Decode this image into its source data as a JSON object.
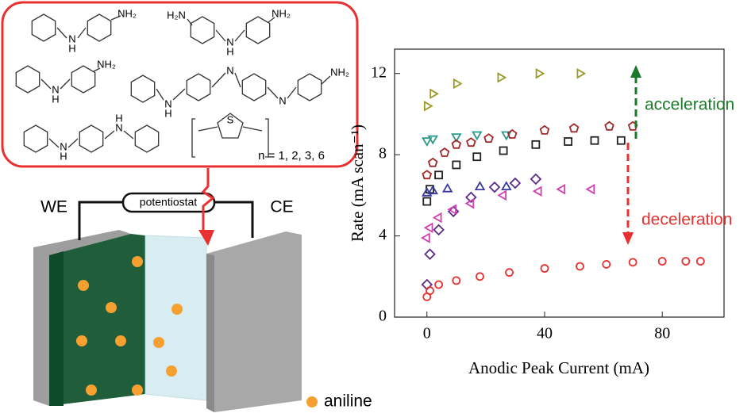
{
  "chart_data": {
    "type": "scatter",
    "xlabel": "Anodic Peak Current (mA)",
    "ylabel": "Rate (mA scan⁻¹)",
    "xlim": [
      -11,
      101
    ],
    "ylim": [
      0,
      13.2
    ],
    "xticks": [
      0,
      40,
      80
    ],
    "yticks": [
      0,
      4,
      8,
      12
    ],
    "series": [
      {
        "marker": "triangle-right",
        "color": "#9a9a28",
        "x": [
          0,
          2,
          10,
          25,
          38,
          52
        ],
        "values": [
          10.4,
          11,
          11.5,
          11.8,
          12,
          12
        ]
      },
      {
        "marker": "triangle-down",
        "color": "#2a9a8a",
        "x": [
          0,
          2,
          10,
          17,
          27
        ],
        "values": [
          8.7,
          8.8,
          8.9,
          9,
          9
        ]
      },
      {
        "marker": "pentagon",
        "color": "#a02828",
        "x": [
          0,
          2,
          6,
          10,
          15,
          21,
          29,
          40,
          50,
          62,
          70
        ],
        "values": [
          7,
          7.6,
          8.1,
          8.5,
          8.6,
          8.8,
          9,
          9.2,
          9.3,
          9.4,
          9.4
        ]
      },
      {
        "marker": "square",
        "color": "#222222",
        "x": [
          0,
          1,
          4,
          10,
          17,
          26,
          37,
          48,
          57,
          66
        ],
        "values": [
          5.7,
          6.3,
          7,
          7.5,
          7.9,
          8.2,
          8.5,
          8.65,
          8.7,
          8.7
        ]
      },
      {
        "marker": "triangle-up",
        "color": "#3a3aa0",
        "x": [
          0,
          2,
          7,
          18,
          27
        ],
        "values": [
          6.1,
          6.2,
          6.3,
          6.4,
          6.4
        ]
      },
      {
        "marker": "diamond",
        "color": "#5a2a8a",
        "x": [
          0,
          1,
          4,
          9,
          15,
          23,
          30,
          37
        ],
        "values": [
          1.6,
          3.1,
          4.3,
          5.2,
          5.9,
          6.4,
          6.6,
          6.8
        ]
      },
      {
        "marker": "triangle-left",
        "color": "#d040b0",
        "x": [
          0,
          1,
          4,
          9,
          15,
          26,
          38,
          46,
          56
        ],
        "values": [
          3.9,
          4.4,
          4.9,
          5.3,
          5.6,
          6,
          6.2,
          6.3,
          6.3
        ]
      },
      {
        "marker": "circle",
        "color": "#e83030",
        "x": [
          0,
          1,
          4,
          10,
          18,
          28,
          40,
          52,
          61,
          70,
          80,
          88,
          93
        ],
        "values": [
          1,
          1.3,
          1.6,
          1.8,
          2,
          2.2,
          2.4,
          2.5,
          2.6,
          2.7,
          2.75,
          2.75,
          2.75
        ]
      }
    ],
    "annotations": [
      {
        "text": "acceleration",
        "color": "#1a7a2a"
      },
      {
        "text": "deceleration",
        "color": "#e83030"
      }
    ]
  },
  "diagram": {
    "structure_labels": [
      "NH₂",
      "N",
      "H",
      "H₂N",
      "N",
      "H",
      "NH₂",
      "NH₂",
      "N",
      "H",
      "N",
      "H",
      "N",
      "N",
      "NH₂",
      "H",
      "N",
      "N",
      "H",
      "S",
      "n = 1, 2, 3, 6"
    ],
    "we": "WE",
    "ce": "CE",
    "potentiostat": "potentiostat",
    "legend": "aniline"
  }
}
